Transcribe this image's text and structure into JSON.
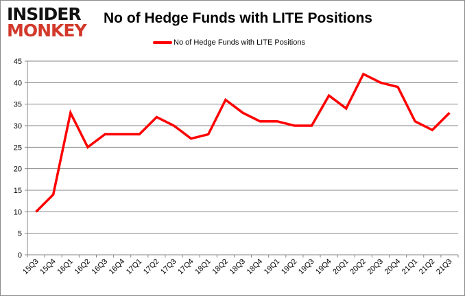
{
  "logo": {
    "line1": "INSIDER",
    "line2": "MONKEY"
  },
  "chart_data": {
    "type": "line",
    "title": "No of Hedge Funds with LITE Positions",
    "categories": [
      "15Q3",
      "15Q4",
      "16Q1",
      "16Q2",
      "16Q3",
      "16Q4",
      "17Q1",
      "17Q2",
      "17Q3",
      "17Q4",
      "18Q1",
      "18Q2",
      "18Q3",
      "18Q4",
      "19Q1",
      "19Q2",
      "19Q3",
      "19Q4",
      "20Q1",
      "20Q2",
      "20Q3",
      "20Q4",
      "21Q1",
      "21Q2",
      "21Q3"
    ],
    "series": [
      {
        "name": "No of Hedge Funds with LITE Positions",
        "color": "#ff0000",
        "values": [
          10,
          14,
          33,
          25,
          28,
          28,
          28,
          32,
          30,
          27,
          28,
          36,
          33,
          31,
          31,
          30,
          30,
          37,
          34,
          42,
          40,
          39,
          31,
          29,
          33
        ]
      }
    ],
    "ylim": [
      0,
      45
    ],
    "yticks": [
      0,
      5,
      10,
      15,
      20,
      25,
      30,
      35,
      40,
      45
    ],
    "xlabel": "",
    "ylabel": "",
    "grid": true,
    "legend": "top-center"
  }
}
